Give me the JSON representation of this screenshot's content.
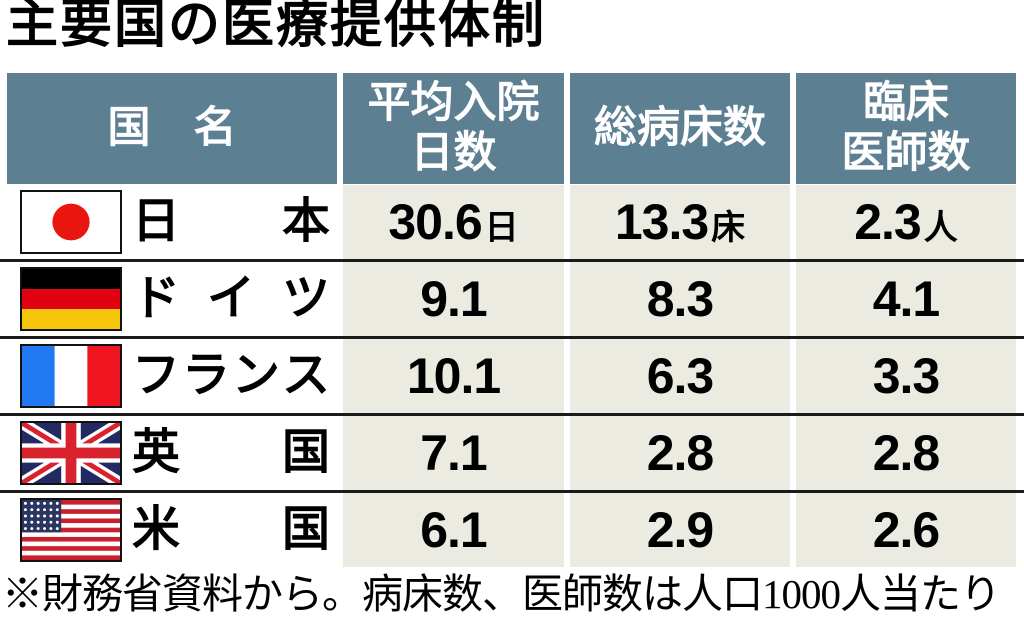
{
  "title": "主要国の医療提供体制",
  "footnote": "※財務省資料から。病床数、医師数は人口1000人当たり",
  "colors": {
    "header_bg": "#5d7f92",
    "header_text": "#ffffff",
    "cell_bg": "#ebebe1",
    "divider": "#1a1a1a",
    "flag_border": "#111111",
    "japan_red": "#e8160f",
    "germany_black": "#000000",
    "germany_red": "#e1000f",
    "germany_gold": "#f6c60b",
    "france_blue": "#2079f0",
    "france_white": "#ffffff",
    "france_red": "#ee1520",
    "uk_navy": "#232a63",
    "uk_red": "#d8222e",
    "uk_white": "#ffffff",
    "usa_red": "#c8202e",
    "usa_navy": "#2a3560",
    "usa_white": "#ffffff"
  },
  "table": {
    "columns": [
      {
        "id": "country",
        "lines": [
          "国　名"
        ]
      },
      {
        "id": "avg-hospital-stay",
        "lines": [
          "平均入院",
          "日数"
        ]
      },
      {
        "id": "total-beds",
        "lines": [
          "総病床数"
        ]
      },
      {
        "id": "clinical-doctors",
        "lines": [
          "臨床",
          "医師数"
        ]
      }
    ],
    "rows": [
      {
        "flag": "japan",
        "country": "日本",
        "name_chars": [
          "日",
          "本"
        ],
        "values": [
          {
            "num": "30.6",
            "unit": "日"
          },
          {
            "num": "13.3",
            "unit": "床"
          },
          {
            "num": "2.3",
            "unit": "人"
          }
        ]
      },
      {
        "flag": "germany",
        "country": "ドイツ",
        "name_chars": [
          "ド",
          "イ",
          "ツ"
        ],
        "values": [
          {
            "num": "9.1"
          },
          {
            "num": "8.3"
          },
          {
            "num": "4.1"
          }
        ]
      },
      {
        "flag": "france",
        "country": "フランス",
        "name_chars": [
          "フ",
          "ラ",
          "ン",
          "ス"
        ],
        "values": [
          {
            "num": "10.1"
          },
          {
            "num": "6.3"
          },
          {
            "num": "3.3"
          }
        ]
      },
      {
        "flag": "uk",
        "country": "英国",
        "name_chars": [
          "英",
          "国"
        ],
        "values": [
          {
            "num": "7.1"
          },
          {
            "num": "2.8"
          },
          {
            "num": "2.8"
          }
        ]
      },
      {
        "flag": "usa",
        "country": "米国",
        "name_chars": [
          "米",
          "国"
        ],
        "values": [
          {
            "num": "6.1"
          },
          {
            "num": "2.9"
          },
          {
            "num": "2.6"
          }
        ]
      }
    ]
  },
  "chart_data": {
    "type": "table",
    "title": "主要国の医療提供体制",
    "columns": [
      "国名",
      "平均入院日数",
      "総病床数",
      "臨床医師数"
    ],
    "rows": [
      [
        "日本",
        30.6,
        13.3,
        2.3
      ],
      [
        "ドイツ",
        9.1,
        8.3,
        4.1
      ],
      [
        "フランス",
        10.1,
        6.3,
        3.3
      ],
      [
        "英国",
        7.1,
        2.8,
        2.8
      ],
      [
        "米国",
        6.1,
        2.9,
        2.6
      ]
    ],
    "units": {
      "平均入院日数": "日",
      "総病床数": "床",
      "臨床医師数": "人"
    },
    "note": "※財務省資料から。病床数、医師数は人口1000人当たり"
  }
}
